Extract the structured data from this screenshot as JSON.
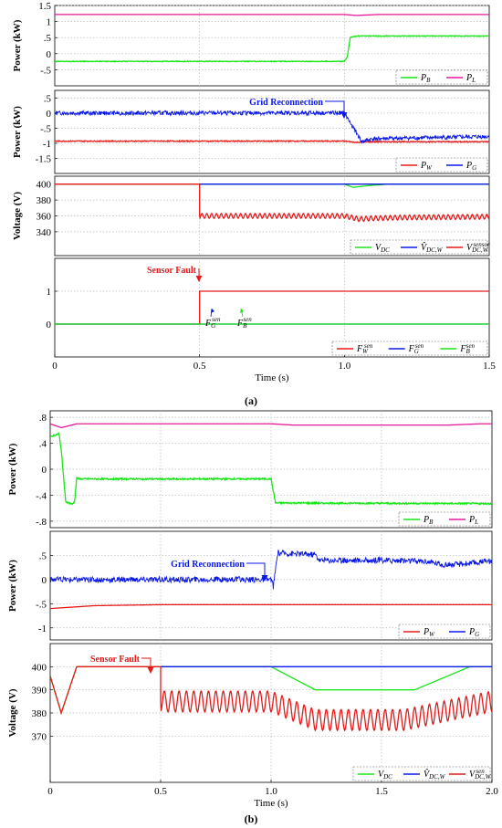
{
  "figure": {
    "caption_a": "(a)",
    "caption_b": "(b)",
    "xlabel": "Time (s)"
  },
  "colors": {
    "green": "#19e619",
    "magenta": "#e6189a",
    "blue": "#0b19e6",
    "red": "#e61a1a",
    "grid": "#b8b8b8"
  },
  "chart_data": [
    {
      "id": "a1",
      "type": "line",
      "ylabel": "Power (kW)",
      "xlim": [
        0,
        1.5
      ],
      "ylim": [
        -1.0,
        1.5
      ],
      "yticks": [
        -0.5,
        0,
        0.5,
        1,
        1.5
      ],
      "series": [
        {
          "name_main": "P",
          "name_sub": "B",
          "color": "green",
          "noise": 0.012,
          "points": [
            [
              0,
              -0.24
            ],
            [
              1.0,
              -0.24
            ],
            [
              1.01,
              -0.1
            ],
            [
              1.02,
              0.5
            ],
            [
              1.04,
              0.55
            ],
            [
              1.5,
              0.55
            ]
          ]
        },
        {
          "name_main": "P",
          "name_sub": "L",
          "color": "magenta",
          "noise": 0,
          "points": [
            [
              0,
              1.22
            ],
            [
              1.0,
              1.22
            ],
            [
              1.04,
              1.19
            ],
            [
              1.12,
              1.22
            ],
            [
              1.5,
              1.22
            ]
          ]
        }
      ]
    },
    {
      "id": "a2",
      "type": "line",
      "ylabel": "Power (kW)",
      "xlim": [
        0,
        1.5
      ],
      "ylim": [
        -2.0,
        0.75
      ],
      "yticks": [
        -1.5,
        -1,
        -0.5,
        0,
        0.5
      ],
      "annotation": "Grid Reconnection",
      "series": [
        {
          "name_main": "P",
          "name_sub": "W",
          "color": "red",
          "noise": 0.015,
          "points": [
            [
              0,
              -0.93
            ],
            [
              1.0,
              -0.93
            ],
            [
              1.04,
              -0.97
            ],
            [
              1.1,
              -0.95
            ],
            [
              1.5,
              -0.95
            ]
          ]
        },
        {
          "name_main": "P",
          "name_sub": "G",
          "color": "blue",
          "noise": 0.07,
          "points": [
            [
              0,
              0
            ],
            [
              1.0,
              0
            ],
            [
              1.06,
              -0.95
            ],
            [
              1.1,
              -0.85
            ],
            [
              1.5,
              -0.78
            ]
          ]
        }
      ]
    },
    {
      "id": "a3",
      "type": "line",
      "ylabel": "Voltage (V)",
      "xlim": [
        0,
        1.5
      ],
      "ylim": [
        310,
        410
      ],
      "yticks": [
        340,
        360,
        380,
        400
      ],
      "series": [
        {
          "name_main": "V",
          "name_sub": "DC",
          "color": "green",
          "noise": 0,
          "points": [
            [
              0,
              400
            ],
            [
              1.0,
              400
            ],
            [
              1.03,
              396
            ],
            [
              1.08,
              398
            ],
            [
              1.15,
              400
            ],
            [
              1.5,
              400
            ]
          ]
        },
        {
          "name_main": "V̂",
          "name_sub": "DC,W",
          "color": "blue",
          "noise": 0,
          "points": [
            [
              0.5,
              400
            ],
            [
              1.5,
              400
            ]
          ]
        },
        {
          "name_main": "V",
          "name_sub": "DC,W",
          "name_sup": "sensor",
          "color": "red",
          "noise": 0,
          "osc": {
            "start": 0.5,
            "amp": 3,
            "freq": 60
          },
          "points": [
            [
              0,
              400
            ],
            [
              0.5,
              400
            ],
            [
              0.5,
              360
            ],
            [
              1.0,
              360
            ],
            [
              1.05,
              356
            ],
            [
              1.1,
              357
            ],
            [
              1.2,
              358
            ],
            [
              1.5,
              359
            ]
          ]
        }
      ]
    },
    {
      "id": "a4",
      "type": "line",
      "ylabel": "",
      "xlim": [
        0,
        1.5
      ],
      "ylim": [
        -1,
        2
      ],
      "yticks": [
        0,
        1
      ],
      "xticks": [
        0,
        0.5,
        1.0,
        1.5
      ],
      "annotation": "Sensor Fault",
      "series": [
        {
          "name_main": "F",
          "name_sub": "W",
          "name_sup": "sen",
          "color": "red",
          "noise": 0,
          "points": [
            [
              0,
              0
            ],
            [
              0.5,
              0
            ],
            [
              0.5,
              1
            ],
            [
              1.5,
              1
            ]
          ]
        },
        {
          "name_main": "F",
          "name_sub": "G",
          "name_sup": "sen",
          "color": "blue",
          "noise": 0,
          "points": [
            [
              0,
              0
            ],
            [
              1.5,
              0
            ]
          ]
        },
        {
          "name_main": "F",
          "name_sub": "B",
          "name_sup": "sen",
          "color": "green",
          "noise": 0,
          "points": [
            [
              0,
              0
            ],
            [
              1.5,
              0
            ]
          ]
        }
      ]
    },
    {
      "id": "b1",
      "type": "line",
      "ylabel": "Power (kW)",
      "xlim": [
        0,
        2.0
      ],
      "ylim": [
        -0.9,
        0.9
      ],
      "yticks": [
        -0.8,
        -0.4,
        0,
        0.4,
        0.8
      ],
      "series": [
        {
          "name_main": "P",
          "name_sub": "B",
          "color": "green",
          "noise": 0.012,
          "points": [
            [
              0,
              0.5
            ],
            [
              0.04,
              0.55
            ],
            [
              0.05,
              0.3
            ],
            [
              0.07,
              -0.5
            ],
            [
              0.1,
              -0.54
            ],
            [
              0.11,
              -0.5
            ],
            [
              0.12,
              -0.14
            ],
            [
              0.14,
              -0.15
            ],
            [
              0.3,
              -0.15
            ],
            [
              0.97,
              -0.15
            ],
            [
              1.0,
              -0.15
            ],
            [
              1.02,
              -0.52
            ],
            [
              2.0,
              -0.53
            ]
          ]
        },
        {
          "name_main": "P",
          "name_sub": "L",
          "color": "magenta",
          "noise": 0,
          "points": [
            [
              0,
              0.7
            ],
            [
              0.05,
              0.64
            ],
            [
              0.12,
              0.7
            ],
            [
              1.0,
              0.7
            ],
            [
              1.1,
              0.68
            ],
            [
              1.8,
              0.68
            ],
            [
              1.95,
              0.7
            ],
            [
              2.0,
              0.7
            ]
          ]
        }
      ]
    },
    {
      "id": "b2",
      "type": "line",
      "ylabel": "Power (kW)",
      "xlim": [
        0,
        2.0
      ],
      "ylim": [
        -1.25,
        1.0
      ],
      "yticks": [
        -1.0,
        -0.5,
        0,
        0.5
      ],
      "annotation": "Grid Reconnection",
      "series": [
        {
          "name_main": "P",
          "name_sub": "W",
          "color": "red",
          "noise": 0,
          "points": [
            [
              0,
              -0.6
            ],
            [
              0.2,
              -0.54
            ],
            [
              0.5,
              -0.52
            ],
            [
              2.0,
              -0.52
            ]
          ]
        },
        {
          "name_main": "P",
          "name_sub": "G",
          "color": "blue",
          "noise": 0.06,
          "points": [
            [
              0,
              0
            ],
            [
              1.0,
              0
            ],
            [
              1.01,
              -0.15
            ],
            [
              1.03,
              0.55
            ],
            [
              1.2,
              0.52
            ],
            [
              1.22,
              0.4
            ],
            [
              1.5,
              0.4
            ],
            [
              1.7,
              0.38
            ],
            [
              1.8,
              0.3
            ],
            [
              2.0,
              0.38
            ]
          ]
        }
      ]
    },
    {
      "id": "b3",
      "type": "line",
      "ylabel": "Voltage (V)",
      "xlim": [
        0,
        2.0
      ],
      "ylim": [
        350,
        410
      ],
      "yticks": [
        370,
        380,
        390,
        400
      ],
      "xticks": [
        0,
        0.5,
        1.0,
        1.5,
        2.0
      ],
      "annotation": "Sensor Fault",
      "series": [
        {
          "name_main": "V",
          "name_sub": "DC",
          "color": "green",
          "noise": 0,
          "points": [
            [
              0,
              396
            ],
            [
              0.05,
              380
            ],
            [
              0.12,
              400
            ],
            [
              1.0,
              400
            ],
            [
              1.2,
              390
            ],
            [
              1.65,
              390
            ],
            [
              1.9,
              400
            ],
            [
              2.0,
              400
            ]
          ]
        },
        {
          "name_main": "V̂",
          "name_sub": "DC,W",
          "color": "blue",
          "noise": 0,
          "points": [
            [
              0.5,
              400
            ],
            [
              2.0,
              400
            ]
          ]
        },
        {
          "name_main": "V",
          "name_sub": "DC,W",
          "name_sup": "sen",
          "color": "red",
          "noise": 0,
          "osc": {
            "start": 0.5,
            "amp": 4.5,
            "freq": 30
          },
          "points": [
            [
              0,
              396
            ],
            [
              0.05,
              380
            ],
            [
              0.12,
              400
            ],
            [
              0.5,
              400
            ],
            [
              0.5,
              385
            ],
            [
              1.0,
              385
            ],
            [
              1.2,
              377
            ],
            [
              1.6,
              377
            ],
            [
              1.85,
              382
            ],
            [
              2.0,
              385
            ]
          ]
        }
      ]
    }
  ]
}
